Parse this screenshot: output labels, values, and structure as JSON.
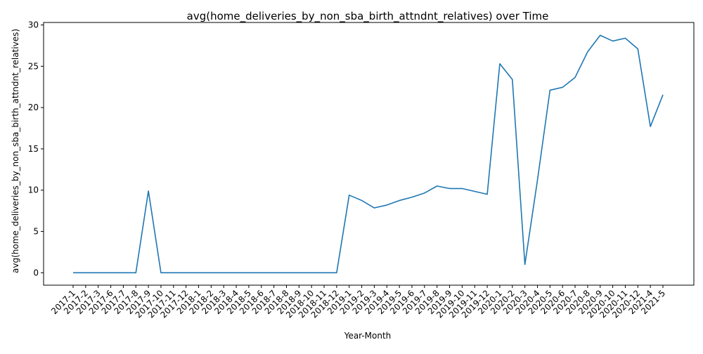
{
  "chart_data": {
    "type": "line",
    "title": "avg(home_deliveries_by_non_sba_birth_attndnt_relatives) over Time",
    "xlabel": "Year-Month",
    "ylabel": "avg(home_deliveries_by_non_sba_birth_attndnt_relatives)",
    "ylim": [
      -1.5,
      30.3
    ],
    "yticks": [
      0,
      5,
      10,
      15,
      20,
      25,
      30
    ],
    "grid": false,
    "line_color": "#1f77b4",
    "categories": [
      "2017-1",
      "2017-2",
      "2017-3",
      "2017-6",
      "2017-7",
      "2017-8",
      "2017-9",
      "2017-10",
      "2017-11",
      "2017-12",
      "2018-1",
      "2018-2",
      "2018-3",
      "2018-4",
      "2018-5",
      "2018-6",
      "2018-7",
      "2018-8",
      "2018-9",
      "2018-10",
      "2018-11",
      "2018-12",
      "2019-1",
      "2019-2",
      "2019-3",
      "2019-4",
      "2019-5",
      "2019-6",
      "2019-7",
      "2019-8",
      "2019-9",
      "2019-10",
      "2019-11",
      "2019-12",
      "2020-1",
      "2020-2",
      "2020-3",
      "2020-4",
      "2020-5",
      "2020-6",
      "2020-7",
      "2020-8",
      "2020-9",
      "2020-10",
      "2020-11",
      "2020-12",
      "2021-4",
      "2021-5"
    ],
    "values": [
      0,
      0,
      0,
      0,
      0,
      0,
      9.9,
      0,
      0,
      0,
      0,
      0,
      0,
      0,
      0,
      0,
      0,
      0,
      0,
      0,
      0,
      0,
      9.4,
      8.75,
      7.85,
      8.2,
      8.75,
      9.15,
      9.65,
      10.5,
      10.2,
      10.2,
      9.85,
      9.5,
      25.3,
      23.4,
      1.0,
      11.2,
      22.1,
      22.45,
      23.65,
      26.75,
      28.75,
      28.05,
      28.4,
      27.1,
      17.7,
      21.55
    ]
  }
}
